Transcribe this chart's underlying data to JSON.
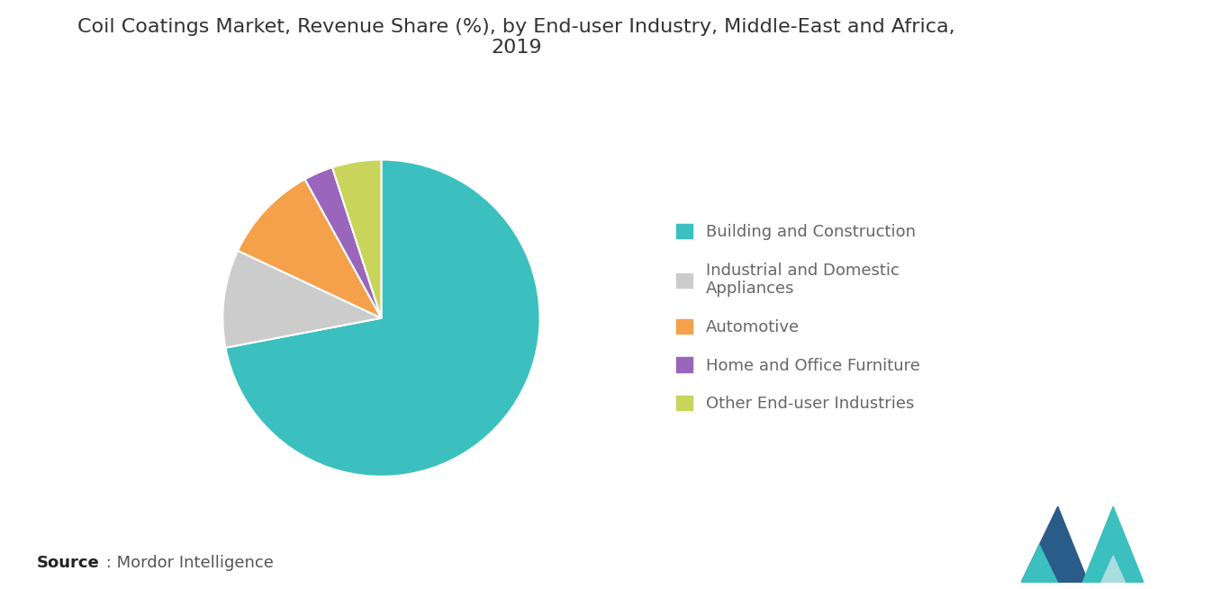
{
  "title": "Coil Coatings Market, Revenue Share (%), by End-user Industry, Middle-East and Africa,\n2019",
  "labels": [
    "Building and Construction",
    "Industrial and Domestic\nAppliances",
    "Automotive",
    "Home and Office Furniture",
    "Other End-user Industries"
  ],
  "values": [
    72,
    10,
    10,
    3,
    5
  ],
  "colors": [
    "#3BBFBF",
    "#CCCCCC",
    "#F5A04A",
    "#9966BB",
    "#C8D45A"
  ],
  "startangle": 90,
  "background_color": "#FFFFFF",
  "title_fontsize": 16,
  "legend_fontsize": 13,
  "source_bold": "Source",
  "source_rest": " : Mordor Intelligence",
  "logo_color1": "#3BBFBF",
  "logo_color2": "#2A5C8A",
  "logo_color3": "#5BB8C8"
}
